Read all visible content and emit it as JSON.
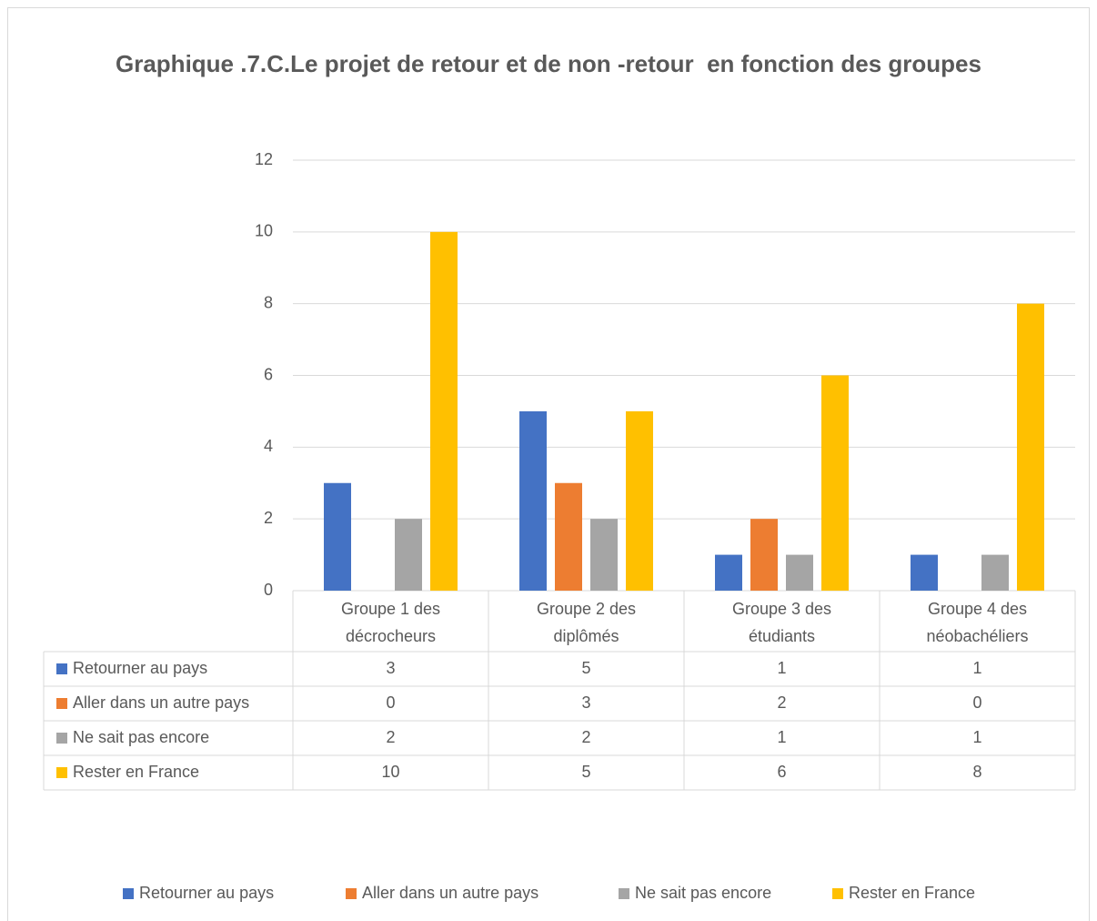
{
  "chart_data": {
    "type": "bar",
    "title": "Graphique .7.C.Le projet de retour et de non -retour  en fonction des groupes",
    "categories": [
      "Groupe 1 des décrocheurs",
      "Groupe 2 des diplômés",
      "Groupe 3 des étudiants",
      "Groupe 4 des néobachéliers"
    ],
    "series": [
      {
        "name": "Retourner au pays",
        "color": "#4472c4",
        "values": [
          3,
          5,
          1,
          1
        ]
      },
      {
        "name": "Aller dans un autre pays",
        "color": "#ed7d31",
        "values": [
          0,
          3,
          2,
          0
        ]
      },
      {
        "name": "Ne sait pas encore",
        "color": "#a5a5a5",
        "values": [
          2,
          2,
          1,
          1
        ]
      },
      {
        "name": "Rester en France",
        "color": "#ffc000",
        "values": [
          10,
          5,
          6,
          8
        ]
      }
    ],
    "ylim": [
      0,
      12
    ],
    "yticks": [
      0,
      2,
      4,
      6,
      8,
      10,
      12
    ],
    "grid": true,
    "legend": "bottom",
    "data_table": true
  }
}
